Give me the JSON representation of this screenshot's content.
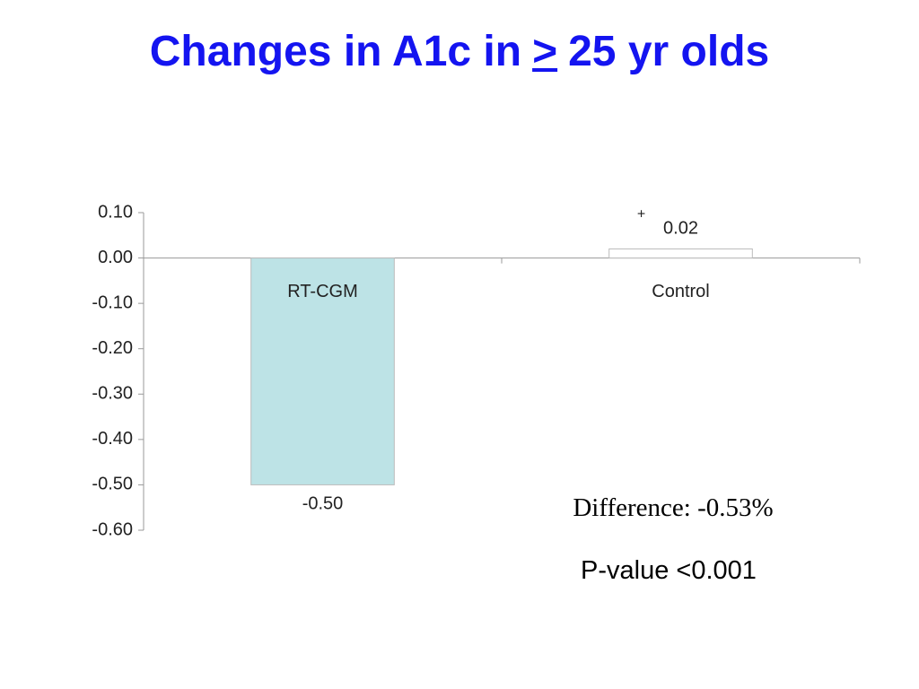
{
  "chart_data": {
    "type": "bar",
    "title": [
      "Changes in A1c in",
      ">",
      "25 yr olds"
    ],
    "categories": [
      "RT-CGM",
      "Control"
    ],
    "values": [
      -0.5,
      0.02
    ],
    "value_labels": [
      "-0.50",
      "0.02"
    ],
    "colors": [
      "#bde3e6",
      "#ffffff"
    ],
    "ylim": [
      -0.6,
      0.1
    ],
    "yticks": [
      {
        "value": 0.1,
        "label": "0.10"
      },
      {
        "value": 0,
        "label": "0.00"
      },
      {
        "value": -0.1,
        "label": "-0.10"
      },
      {
        "value": -0.2,
        "label": "-0.20"
      },
      {
        "value": -0.3,
        "label": "-0.30"
      },
      {
        "value": -0.4,
        "label": "-0.40"
      },
      {
        "value": -0.5,
        "label": "-0.50"
      },
      {
        "value": -0.6,
        "label": "-0.60"
      }
    ],
    "annotations": [
      "+",
      "Difference: -0.53%",
      "P-value <0.001"
    ]
  }
}
